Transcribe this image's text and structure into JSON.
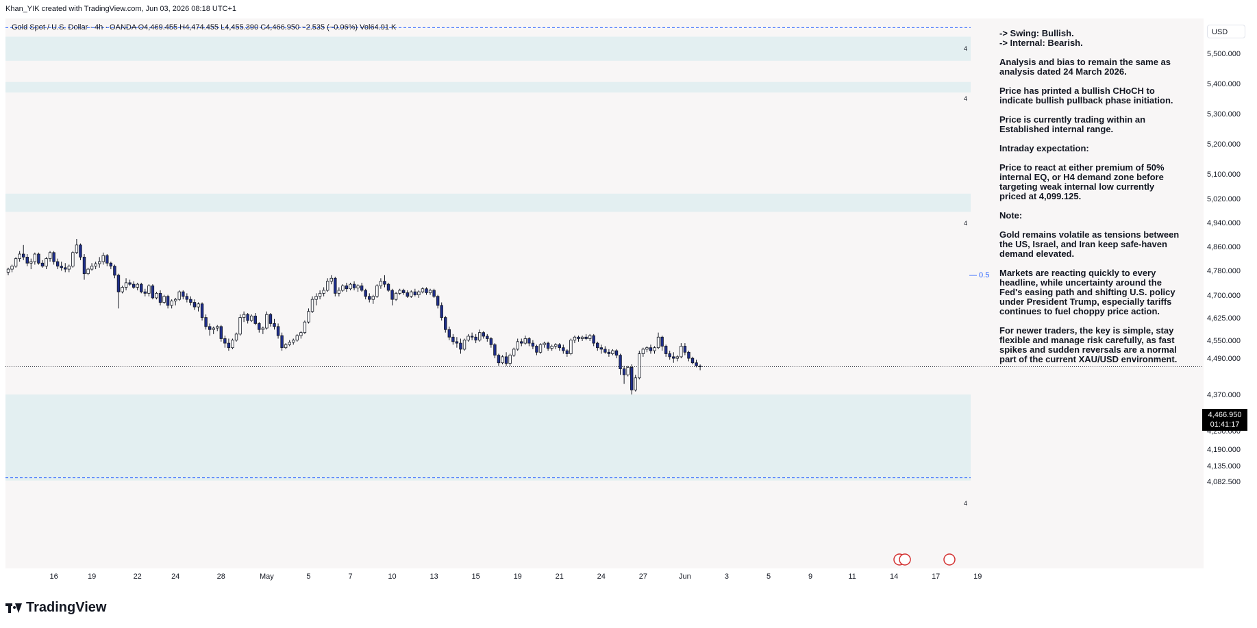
{
  "header": {
    "attribution": "Khan_YIK created with TradingView.com, Jun 03, 2026 08:18 UTC+1"
  },
  "legend": {
    "text": "Gold Spot / U.S. Dollar · 4h · OANDA  O4,469.455  H4,474.455  L4,455.390  C4,466.950  −2.535 (−0.06%)  Vol64.91 K"
  },
  "currency_button": "USD",
  "current_price": {
    "price": "4,466.950",
    "countdown": "01:41:17"
  },
  "brand": "TradingView",
  "zone_labels": [
    "4",
    "4",
    "4",
    "4"
  ],
  "eq_label": "— 0.5",
  "notes": [
    "-> Swing:  Bullish.\n-> Internal:  Bearish.",
    "Analysis and bias to remain the same as\nanalysis dated 24 March 2026.",
    "Price has printed a bullish CHoCH to\nindicate bullish pullback phase initiation.",
    "Price is currently trading within an\nEstablished internal range.",
    "Intraday expectation:",
    "Price to react at either premium of 50%\ninternal EQ, or H4 demand zone before\ntargeting weak internal low currently\npriced at 4,099.125.",
    "Note:",
    "Gold remains volatile as tensions between\nthe US, Israel, and Iran keep safe-haven\ndemand elevated.",
    "Markets are reacting quickly to every\nheadline, while uncertainty around the\nFed's easing path and shifting U.S. policy\nunder President Trump, especially tariffs\ncontinues to fuel choppy price action.",
    "For newer traders, the key is simple, stay\nflexible and manage risk carefully, as fast\nspikes and sudden reversals are a normal\npart of the current XAU/USD environment."
  ],
  "colors": {
    "bull_candle": "#ffffff",
    "bear_candle": "#1e2e8c",
    "zone_fill": "#e3eff1",
    "dashed_line": "#2962ff",
    "background": "#f8f6f6"
  },
  "chart_data": {
    "type": "candlestick",
    "symbol": "Gold Spot / U.S. Dollar",
    "timeframe": "4h",
    "exchange": "OANDA",
    "y_ticks": [
      "5,500.000",
      "5,400.000",
      "5,300.000",
      "5,200.000",
      "5,100.000",
      "5,020.000",
      "4,940.000",
      "4,860.000",
      "4,780.000",
      "4,700.000",
      "4,625.000",
      "4,550.000",
      "4,490.000",
      "4,370.000",
      "4,310.000",
      "4,250.000",
      "4,190.000",
      "4,135.000",
      "4,082.500"
    ],
    "y_tick_values": [
      5500,
      5400,
      5300,
      5200,
      5100,
      5020,
      4940,
      4860,
      4780,
      4700,
      4625,
      4550,
      4490,
      4370,
      4310,
      4250,
      4190,
      4135,
      4082.5
    ],
    "x_ticks": [
      "16",
      "19",
      "22",
      "24",
      "28",
      "May",
      "5",
      "7",
      "10",
      "13",
      "15",
      "19",
      "21",
      "24",
      "27",
      "Jun",
      "3",
      "5",
      "9",
      "11",
      "14",
      "17",
      "19"
    ],
    "x_tick_index": [
      12,
      22,
      34,
      44,
      56,
      68,
      79,
      90,
      101,
      112,
      123,
      134,
      145,
      156,
      167,
      178,
      189,
      200,
      211,
      222,
      233,
      244,
      255
    ],
    "last": {
      "open": 4469.455,
      "high": 4474.455,
      "low": 4455.39,
      "close": 4466.95,
      "change": -2.535,
      "change_pct": -0.06,
      "volume": "64.91 K"
    },
    "candles": [
      [
        4780,
        4795,
        4770,
        4790
      ],
      [
        4790,
        4805,
        4780,
        4800
      ],
      [
        4800,
        4830,
        4795,
        4825
      ],
      [
        4825,
        4850,
        4815,
        4840
      ],
      [
        4840,
        4870,
        4820,
        4830
      ],
      [
        4830,
        4840,
        4800,
        4810
      ],
      [
        4810,
        4825,
        4790,
        4815
      ],
      [
        4815,
        4845,
        4805,
        4840
      ],
      [
        4840,
        4845,
        4805,
        4810
      ],
      [
        4810,
        4820,
        4795,
        4800
      ],
      [
        4800,
        4830,
        4790,
        4825
      ],
      [
        4825,
        4850,
        4815,
        4845
      ],
      [
        4845,
        4850,
        4805,
        4815
      ],
      [
        4815,
        4825,
        4790,
        4800
      ],
      [
        4800,
        4815,
        4785,
        4795
      ],
      [
        4795,
        4810,
        4780,
        4790
      ],
      [
        4790,
        4805,
        4780,
        4800
      ],
      [
        4800,
        4850,
        4795,
        4845
      ],
      [
        4845,
        4890,
        4840,
        4870
      ],
      [
        4870,
        4875,
        4820,
        4830
      ],
      [
        4830,
        4840,
        4755,
        4775
      ],
      [
        4775,
        4795,
        4770,
        4790
      ],
      [
        4790,
        4810,
        4785,
        4800
      ],
      [
        4800,
        4815,
        4790,
        4808
      ],
      [
        4808,
        4830,
        4795,
        4815
      ],
      [
        4815,
        4845,
        4805,
        4835
      ],
      [
        4835,
        4840,
        4800,
        4810
      ],
      [
        4810,
        4815,
        4790,
        4800
      ],
      [
        4800,
        4805,
        4760,
        4770
      ],
      [
        4770,
        4775,
        4660,
        4715
      ],
      [
        4715,
        4735,
        4710,
        4730
      ],
      [
        4730,
        4760,
        4720,
        4745
      ],
      [
        4745,
        4755,
        4735,
        4740
      ],
      [
        4740,
        4750,
        4725,
        4730
      ],
      [
        4730,
        4745,
        4720,
        4740
      ],
      [
        4740,
        4745,
        4710,
        4715
      ],
      [
        4715,
        4725,
        4700,
        4710
      ],
      [
        4710,
        4740,
        4700,
        4735
      ],
      [
        4735,
        4740,
        4690,
        4695
      ],
      [
        4695,
        4715,
        4690,
        4710
      ],
      [
        4710,
        4720,
        4670,
        4680
      ],
      [
        4680,
        4705,
        4675,
        4700
      ],
      [
        4700,
        4705,
        4660,
        4670
      ],
      [
        4670,
        4690,
        4660,
        4685
      ],
      [
        4685,
        4695,
        4670,
        4690
      ],
      [
        4690,
        4720,
        4685,
        4715
      ],
      [
        4715,
        4720,
        4690,
        4700
      ],
      [
        4700,
        4710,
        4680,
        4690
      ],
      [
        4690,
        4700,
        4670,
        4680
      ],
      [
        4680,
        4690,
        4655,
        4665
      ],
      [
        4665,
        4680,
        4650,
        4675
      ],
      [
        4675,
        4680,
        4620,
        4630
      ],
      [
        4630,
        4640,
        4590,
        4600
      ],
      [
        4600,
        4610,
        4570,
        4590
      ],
      [
        4590,
        4600,
        4575,
        4595
      ],
      [
        4595,
        4605,
        4585,
        4600
      ],
      [
        4600,
        4605,
        4550,
        4560
      ],
      [
        4560,
        4570,
        4530,
        4545
      ],
      [
        4545,
        4560,
        4520,
        4530
      ],
      [
        4530,
        4560,
        4525,
        4555
      ],
      [
        4555,
        4580,
        4550,
        4575
      ],
      [
        4575,
        4640,
        4570,
        4630
      ],
      [
        4630,
        4650,
        4615,
        4640
      ],
      [
        4640,
        4645,
        4610,
        4620
      ],
      [
        4620,
        4640,
        4615,
        4635
      ],
      [
        4635,
        4645,
        4605,
        4610
      ],
      [
        4610,
        4615,
        4580,
        4590
      ],
      [
        4590,
        4600,
        4575,
        4595
      ],
      [
        4595,
        4650,
        4590,
        4640
      ],
      [
        4640,
        4645,
        4600,
        4610
      ],
      [
        4610,
        4625,
        4590,
        4600
      ],
      [
        4600,
        4610,
        4560,
        4570
      ],
      [
        4570,
        4580,
        4520,
        4530
      ],
      [
        4530,
        4545,
        4525,
        4540
      ],
      [
        4540,
        4555,
        4535,
        4548
      ],
      [
        4548,
        4560,
        4540,
        4555
      ],
      [
        4555,
        4575,
        4550,
        4570
      ],
      [
        4570,
        4585,
        4560,
        4580
      ],
      [
        4580,
        4620,
        4575,
        4615
      ],
      [
        4615,
        4660,
        4610,
        4650
      ],
      [
        4650,
        4700,
        4645,
        4690
      ],
      [
        4690,
        4710,
        4670,
        4700
      ],
      [
        4700,
        4720,
        4690,
        4710
      ],
      [
        4710,
        4730,
        4700,
        4720
      ],
      [
        4720,
        4760,
        4715,
        4750
      ],
      [
        4750,
        4770,
        4740,
        4760
      ],
      [
        4760,
        4765,
        4700,
        4710
      ],
      [
        4710,
        4730,
        4700,
        4720
      ],
      [
        4720,
        4740,
        4715,
        4735
      ],
      [
        4735,
        4745,
        4715,
        4725
      ],
      [
        4725,
        4745,
        4720,
        4740
      ],
      [
        4740,
        4750,
        4720,
        4728
      ],
      [
        4728,
        4740,
        4715,
        4735
      ],
      [
        4735,
        4745,
        4715,
        4720
      ],
      [
        4720,
        4725,
        4690,
        4700
      ],
      [
        4700,
        4710,
        4680,
        4690
      ],
      [
        4690,
        4705,
        4675,
        4700
      ],
      [
        4700,
        4740,
        4695,
        4735
      ],
      [
        4735,
        4760,
        4725,
        4750
      ],
      [
        4750,
        4770,
        4730,
        4740
      ],
      [
        4740,
        4745,
        4715,
        4720
      ],
      [
        4720,
        4725,
        4670,
        4690
      ],
      [
        4690,
        4715,
        4685,
        4710
      ],
      [
        4710,
        4725,
        4705,
        4720
      ],
      [
        4720,
        4725,
        4705,
        4712
      ],
      [
        4712,
        4720,
        4695,
        4700
      ],
      [
        4700,
        4720,
        4695,
        4715
      ],
      [
        4715,
        4725,
        4700,
        4705
      ],
      [
        4705,
        4720,
        4695,
        4715
      ],
      [
        4715,
        4730,
        4710,
        4725
      ],
      [
        4725,
        4730,
        4705,
        4712
      ],
      [
        4712,
        4725,
        4705,
        4720
      ],
      [
        4720,
        4725,
        4695,
        4700
      ],
      [
        4700,
        4705,
        4660,
        4670
      ],
      [
        4670,
        4680,
        4620,
        4630
      ],
      [
        4630,
        4635,
        4580,
        4590
      ],
      [
        4590,
        4600,
        4555,
        4565
      ],
      [
        4565,
        4575,
        4540,
        4550
      ],
      [
        4550,
        4565,
        4530,
        4545
      ],
      [
        4545,
        4560,
        4510,
        4525
      ],
      [
        4525,
        4560,
        4520,
        4555
      ],
      [
        4555,
        4575,
        4550,
        4568
      ],
      [
        4568,
        4580,
        4555,
        4565
      ],
      [
        4565,
        4575,
        4545,
        4555
      ],
      [
        4555,
        4590,
        4550,
        4580
      ],
      [
        4580,
        4585,
        4560,
        4568
      ],
      [
        4568,
        4575,
        4550,
        4560
      ],
      [
        4560,
        4565,
        4530,
        4540
      ],
      [
        4540,
        4545,
        4495,
        4505
      ],
      [
        4505,
        4510,
        4470,
        4480
      ],
      [
        4480,
        4505,
        4475,
        4500
      ],
      [
        4500,
        4515,
        4470,
        4478
      ],
      [
        4478,
        4510,
        4470,
        4505
      ],
      [
        4505,
        4530,
        4500,
        4525
      ],
      [
        4525,
        4560,
        4520,
        4550
      ],
      [
        4550,
        4560,
        4535,
        4545
      ],
      [
        4545,
        4570,
        4540,
        4560
      ],
      [
        4560,
        4565,
        4535,
        4545
      ],
      [
        4545,
        4555,
        4525,
        4535
      ],
      [
        4535,
        4540,
        4505,
        4515
      ],
      [
        4515,
        4545,
        4510,
        4540
      ],
      [
        4540,
        4550,
        4530,
        4545
      ],
      [
        4545,
        4550,
        4520,
        4528
      ],
      [
        4528,
        4540,
        4520,
        4535
      ],
      [
        4535,
        4545,
        4525,
        4540
      ],
      [
        4540,
        4545,
        4520,
        4530
      ],
      [
        4530,
        4540,
        4510,
        4520
      ],
      [
        4520,
        4525,
        4500,
        4510
      ],
      [
        4510,
        4560,
        4505,
        4555
      ],
      [
        4555,
        4570,
        4545,
        4565
      ],
      [
        4565,
        4570,
        4550,
        4560
      ],
      [
        4560,
        4570,
        4552,
        4565
      ],
      [
        4565,
        4575,
        4555,
        4560
      ],
      [
        4560,
        4575,
        4552,
        4570
      ],
      [
        4570,
        4575,
        4535,
        4545
      ],
      [
        4545,
        4550,
        4520,
        4530
      ],
      [
        4530,
        4540,
        4510,
        4525
      ],
      [
        4525,
        4535,
        4510,
        4515
      ],
      [
        4515,
        4525,
        4500,
        4510
      ],
      [
        4510,
        4525,
        4505,
        4520
      ],
      [
        4520,
        4525,
        4495,
        4505
      ],
      [
        4505,
        4510,
        4440,
        4460
      ],
      [
        4460,
        4470,
        4410,
        4440
      ],
      [
        4440,
        4470,
        4435,
        4465
      ],
      [
        4465,
        4475,
        4375,
        4390
      ],
      [
        4390,
        4440,
        4385,
        4430
      ],
      [
        4430,
        4520,
        4425,
        4510
      ],
      [
        4510,
        4530,
        4500,
        4525
      ],
      [
        4525,
        4535,
        4515,
        4530
      ],
      [
        4530,
        4540,
        4510,
        4520
      ],
      [
        4520,
        4535,
        4510,
        4530
      ],
      [
        4530,
        4580,
        4525,
        4565
      ],
      [
        4565,
        4570,
        4520,
        4535
      ],
      [
        4535,
        4540,
        4500,
        4510
      ],
      [
        4510,
        4520,
        4490,
        4500
      ],
      [
        4500,
        4515,
        4480,
        4495
      ],
      [
        4495,
        4505,
        4485,
        4500
      ],
      [
        4500,
        4545,
        4495,
        4535
      ],
      [
        4535,
        4545,
        4505,
        4515
      ],
      [
        4515,
        4520,
        4485,
        4495
      ],
      [
        4495,
        4500,
        4475,
        4480
      ],
      [
        4480,
        4490,
        4465,
        4470
      ],
      [
        4469.455,
        4474.455,
        4455.39,
        4466.95
      ]
    ],
    "zones": [
      {
        "type": "supply",
        "from": 5480,
        "to": 5560
      },
      {
        "type": "supply",
        "from": 5375,
        "to": 5410
      },
      {
        "type": "supply",
        "from": 4980,
        "to": 5040
      },
      {
        "type": "demand",
        "from": 4090,
        "to": 4375
      }
    ],
    "levels": [
      {
        "label": "swing-high",
        "value": 5590
      },
      {
        "label": "weak-internal-low",
        "value": 4099.125
      },
      {
        "label": "0.5",
        "value": 4855
      }
    ]
  }
}
